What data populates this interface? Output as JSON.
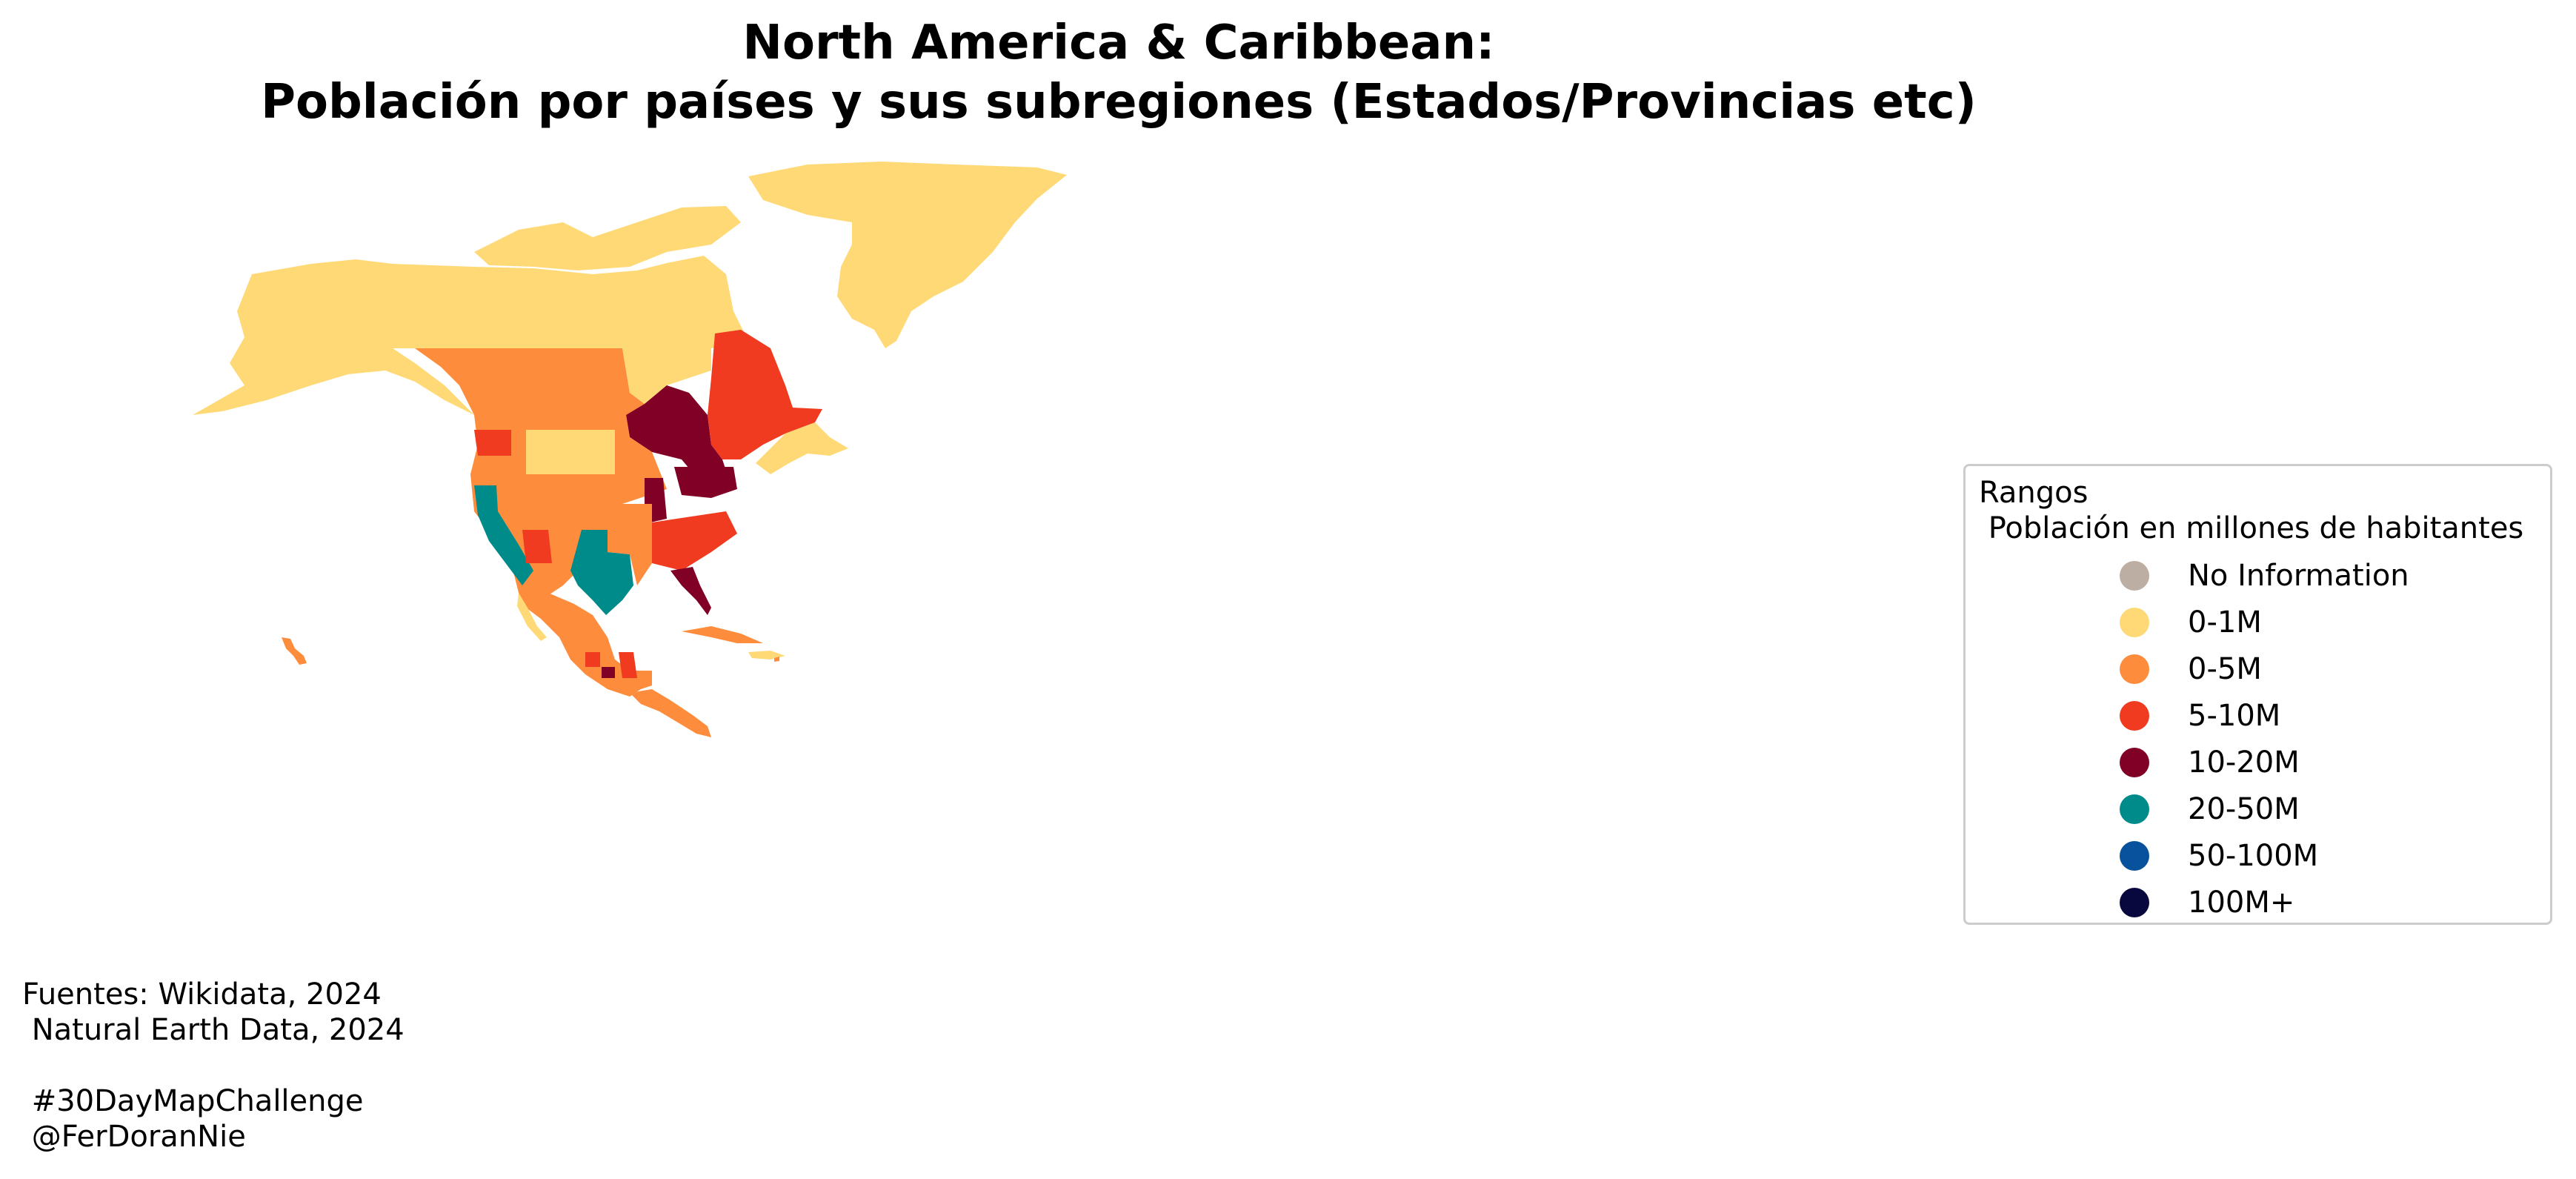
{
  "title": "North America & Caribbean:\nPoblación por países y sus subregiones (Estados/Provincias etc)",
  "title_line1": "North America & Caribbean:",
  "title_line2": "Población por países y sus subregiones (Estados/Provincias etc)",
  "legend": {
    "title_line1": "Rangos",
    "title_line2": " Población en millones de habitantes",
    "items": [
      {
        "label": "No Information",
        "color": "#bcaea3"
      },
      {
        "label": "0-1M",
        "color": "#fed976"
      },
      {
        "label": "0-5M",
        "color": "#fd8d3c"
      },
      {
        "label": "5-10M",
        "color": "#f03b20"
      },
      {
        "label": "10-20M",
        "color": "#800026"
      },
      {
        "label": "20-50M",
        "color": "#008b8b"
      },
      {
        "label": "50-100M",
        "color": "#08519c"
      },
      {
        "label": "100M+",
        "color": "#08083f"
      }
    ],
    "placement": "center-right"
  },
  "sources": "Fuentes: Wikidata, 2024\n Natural Earth Data, 2024\n\n #30DayMapChallenge\n @FerDoranNie",
  "regions": {
    "greenland": "0-1M",
    "alaska": "0-1M",
    "canada-north": "0-1M",
    "western-canada": "0-5M",
    "ontario": "10-20M",
    "quebec": "5-10M",
    "atlantic-canada": "0-1M",
    "california": "20-50M",
    "texas": "20-50M",
    "florida": "10-20M",
    "new-york": "10-20M",
    "mexico-city": "10-20M"
  }
}
